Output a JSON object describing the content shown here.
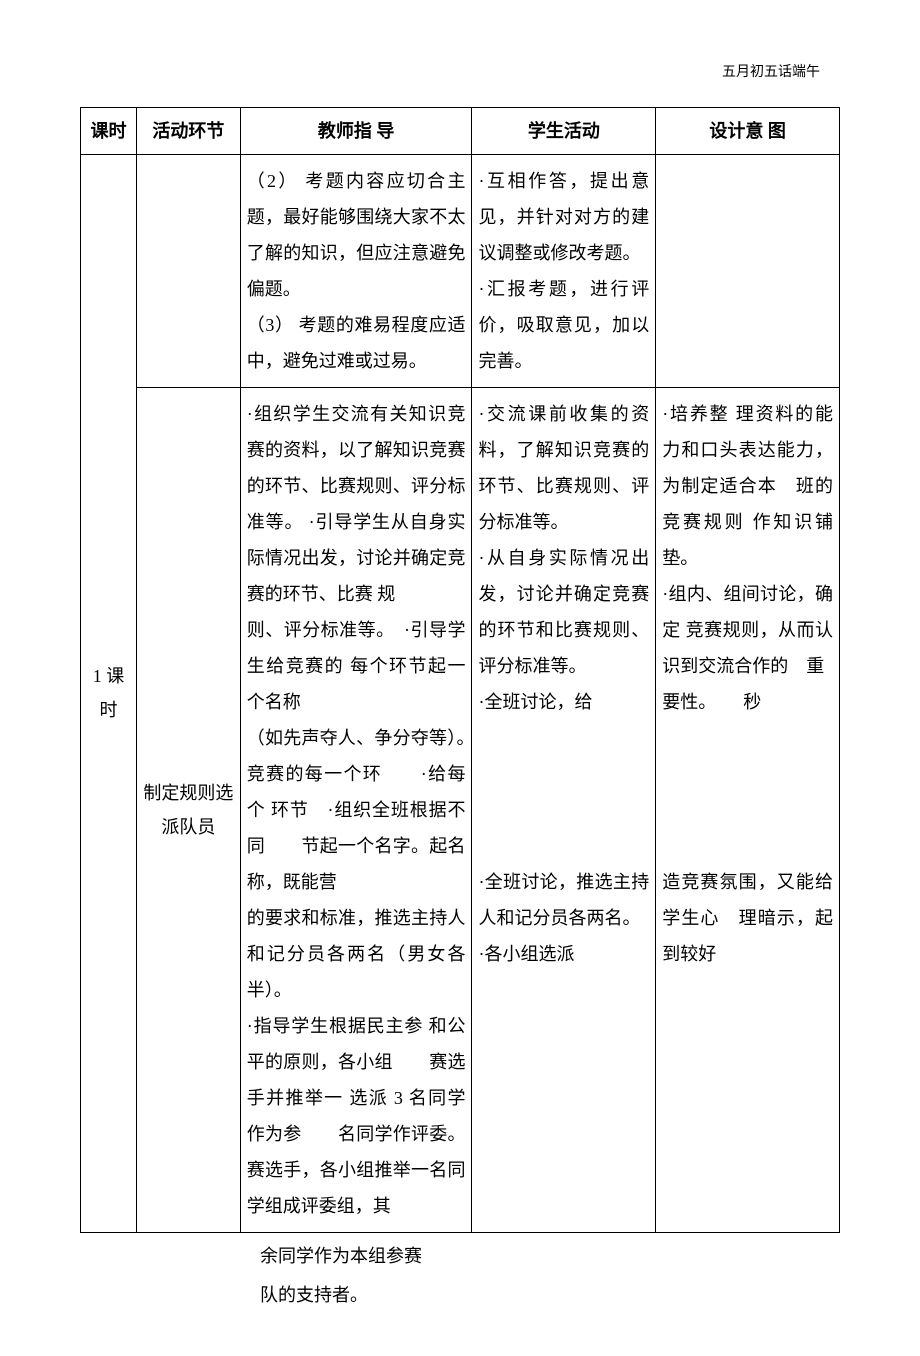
{
  "page_header": "五月初五话端午",
  "table": {
    "headers": {
      "period": "课时",
      "section": "活动环节",
      "teacher": "教师指 导",
      "student": "学生活动",
      "intent": "设计意 图"
    },
    "period_label": "1 课 时",
    "row1": {
      "teacher": "（2） 考题内容应切合主题，最好能够围绕大家不太了解的知识，但应注意避免偏题。\n（3） 考题的难易程度应适中，避免过难或过易。",
      "student": "·互相作答，提出意见，并针对对方的建议调整或修改考题。\n·汇报考题，进行评价，吸取意见，加以完善。"
    },
    "row2": {
      "section": "制定规则选派队员",
      "teacher": "·组织学生交流有关知识竞赛的资料，以了解知识竞赛的环节、比赛规则、评分标准等。 ·引导学生从自身实际情况出发，讨论并确定竞赛的环节、比赛 规\n则、评分标准等。　·引导学生给竞赛的 每个环节起一个名称\n（如先声夺人、争分夺等）。　　　　　　　竞赛的每一个环　　·给每个 环节　·组织全班根据不同　　节起一个名字。起名称，既能营\n的要求和标准，推选主持人和记分员各两名（男女各半）。\n·指导学生根据民主参 和公平的原则，各小组　　赛选手并推举一 选派 3 名同学作为参　　名同学作评委。 赛选手，各小组推举一名同学组成评委组，其",
      "student": "·交流课前收集的资料，了解知识竞赛的环节、比赛规则、评分标准等。\n·从自身实际情况出发，讨论并确定竞赛的环节和比赛规则、评分标准等。\n·全班讨论，给\n\n\n·全班讨论，推选主持人和记分员各两名。\n·各小组选派",
      "intent": "·培养整 理资料的能　力和口头表达能力，为制定适合本　班的竞赛规则 作知识铺垫。\n·组内、组间讨论，确定 竞赛规则，从而认识到交流合作的　重\n要性。　　秒\n\n\n造竞赛氛围，又能给学生心　理暗示，起到较好"
    }
  },
  "below_table": "余同学作为本组参赛\n队的支持者。"
}
